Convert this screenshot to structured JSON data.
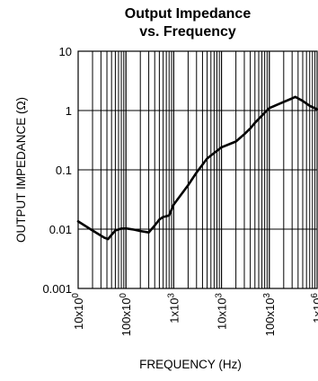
{
  "chart_data": {
    "type": "line",
    "title": [
      "Output Impedance",
      "vs. Frequency"
    ],
    "xlabel": "FREQUENCY (Hz)",
    "ylabel": "OUTPUT IMPEDANCE (Ω)",
    "x_scale": "log",
    "y_scale": "log",
    "xlim": [
      10,
      1000000
    ],
    "ylim": [
      0.001,
      10
    ],
    "x_ticks": [
      {
        "value": 10,
        "label": "10x10",
        "exp": "0"
      },
      {
        "value": 100,
        "label": "100x10",
        "exp": "0"
      },
      {
        "value": 1000,
        "label": "1x10",
        "exp": "3"
      },
      {
        "value": 10000,
        "label": "10x10",
        "exp": "3"
      },
      {
        "value": 100000,
        "label": "100x10",
        "exp": "3"
      },
      {
        "value": 1000000,
        "label": "1x10",
        "exp": "6"
      }
    ],
    "y_ticks": [
      {
        "value": 10,
        "label": "10"
      },
      {
        "value": 1,
        "label": "1"
      },
      {
        "value": 0.1,
        "label": "0.1"
      },
      {
        "value": 0.01,
        "label": "0.01"
      },
      {
        "value": 0.001,
        "label": "0.001"
      }
    ],
    "grid": true,
    "series": [
      {
        "color": "#000000",
        "x": [
          10,
          20,
          35,
          42,
          50,
          60,
          80,
          100,
          150,
          200,
          300,
          400,
          500,
          600,
          700,
          800,
          1000,
          2000,
          3000,
          5000,
          10000,
          20000,
          30000,
          40000,
          50000,
          60000,
          70000,
          80000,
          100000,
          200000,
          300000,
          350000,
          400000,
          500000,
          700000,
          1000000
        ],
        "y": [
          0.0135,
          0.0095,
          0.0072,
          0.0068,
          0.008,
          0.0095,
          0.0102,
          0.0103,
          0.0098,
          0.0093,
          0.0088,
          0.0115,
          0.0145,
          0.016,
          0.0165,
          0.017,
          0.026,
          0.055,
          0.09,
          0.155,
          0.24,
          0.3,
          0.4,
          0.5,
          0.62,
          0.72,
          0.82,
          0.92,
          1.1,
          1.4,
          1.6,
          1.7,
          1.6,
          1.45,
          1.2,
          1.05
        ]
      }
    ]
  }
}
